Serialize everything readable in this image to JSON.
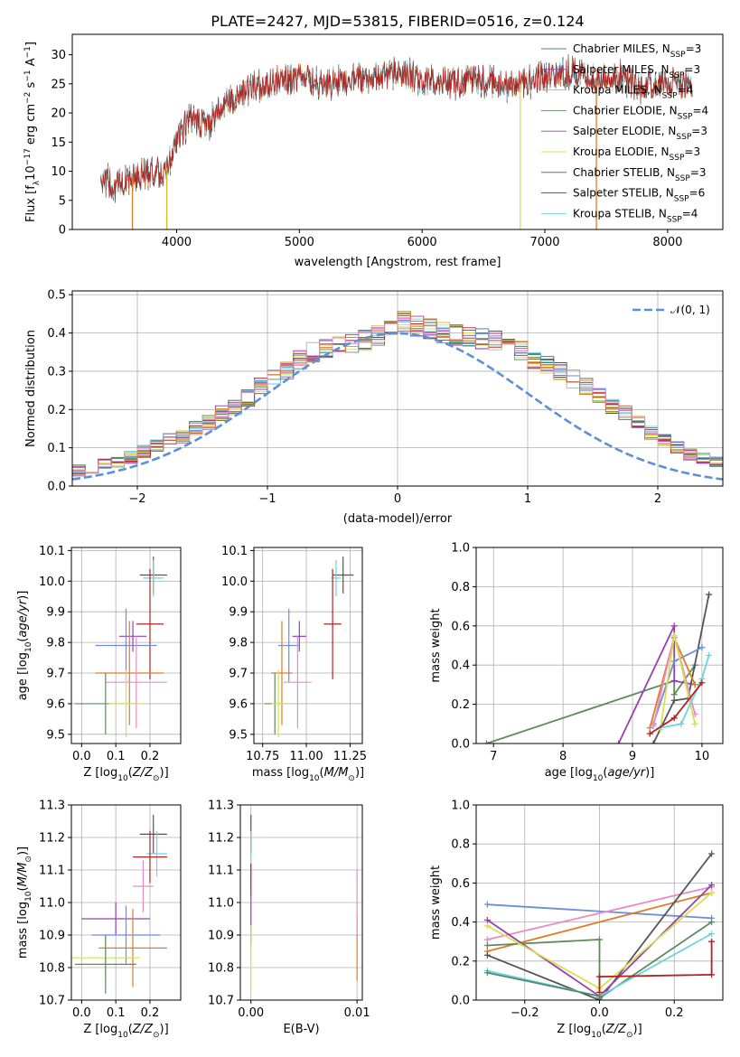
{
  "figure_title": "PLATE=2427, MJD=53815, FIBERID=0516, z=0.124",
  "palette": [
    "#4f8a6f",
    "#8b2bb3",
    "#dfb428",
    "#5f8a5f",
    "#9a3fb0",
    "#d6e04d",
    "#555555",
    "#b22222",
    "#6fd3e0",
    "#6a8edc",
    "#e07b26",
    "#e88cc4"
  ],
  "chart_data": [
    {
      "id": "spectrum",
      "type": "line",
      "title": "PLATE=2427, MJD=53815, FIBERID=0516, z=0.124",
      "xlabel": "wavelength [Angstrom, rest frame]",
      "ylabel": "Flux [f_λ10^-17 erg cm^-2 s^-1 A^-1]",
      "xlim": [
        3150,
        8450
      ],
      "ylim": [
        0,
        33.5
      ],
      "xticks": [
        4000,
        5000,
        6000,
        7000,
        8000
      ],
      "yticks": [
        0,
        5,
        10,
        15,
        20,
        25,
        30
      ],
      "grid": false,
      "legend": "top-right",
      "legend_entries": [
        {
          "model": "Chabrier MILES",
          "n": "3",
          "color": "#4f8a6f"
        },
        {
          "model": "Salpeter MILES",
          "n": "3",
          "color": "#8b2bb3"
        },
        {
          "model": "Kroupa MILES",
          "n": "4",
          "color": "#dfb428"
        },
        {
          "model": "Chabrier ELODIE",
          "n": "4",
          "color": "#5f8a5f"
        },
        {
          "model": "Salpeter ELODIE",
          "n": "3",
          "color": "#9a3fb0"
        },
        {
          "model": "Kroupa ELODIE",
          "n": "3",
          "color": "#d6e04d"
        },
        {
          "model": "Chabrier STELIB",
          "n": "3",
          "color": "#555555"
        },
        {
          "model": "Salpeter STELIB",
          "n": "6",
          "color": "#b22222"
        },
        {
          "model": "Kroupa STELIB",
          "n": "4",
          "color": "#6fd3e0"
        }
      ],
      "envelope": {
        "x": [
          3380,
          3500,
          3650,
          3800,
          3900,
          4000,
          4100,
          4250,
          4400,
          4600,
          4800,
          5000,
          5200,
          5400,
          5600,
          5800,
          6000,
          6200,
          6400,
          6600,
          6800,
          7000,
          7200,
          7400,
          7600,
          7800,
          8000,
          8200
        ],
        "y": [
          9,
          7.5,
          9,
          10,
          9.5,
          15,
          19,
          18,
          22,
          24,
          25.5,
          26,
          25,
          26,
          26,
          27,
          25.5,
          25,
          26,
          25,
          25,
          26,
          27,
          26,
          26,
          24.5,
          25.5,
          24.5
        ]
      },
      "drop_lines": [
        {
          "x": 3640,
          "color": "#e07b26"
        },
        {
          "x": 3920,
          "color": "#dfb428"
        },
        {
          "x": 6800,
          "color": "#d6e04d"
        },
        {
          "x": 7420,
          "color": "#e07b26"
        }
      ]
    },
    {
      "id": "residuals",
      "type": "histogram",
      "xlabel": "(data-model)/error",
      "ylabel": "Normed distribution",
      "xlim": [
        -2.5,
        2.5
      ],
      "ylim": [
        0,
        0.51
      ],
      "xticks": [
        -2,
        -1,
        0,
        1,
        2
      ],
      "yticks": [
        0.0,
        0.1,
        0.2,
        0.3,
        0.4,
        0.5
      ],
      "grid": true,
      "legend": "top-right",
      "reference": {
        "label": "N(0,1)",
        "color": "#5b8fd9"
      },
      "bin_width": 0.1,
      "profile": [
        0.02,
        0.022,
        0.025,
        0.03,
        0.035,
        0.04,
        0.045,
        0.055,
        0.065,
        0.075,
        0.09,
        0.105,
        0.12,
        0.13,
        0.15,
        0.165,
        0.19,
        0.205,
        0.23,
        0.26,
        0.285,
        0.3,
        0.33,
        0.35,
        0.36,
        0.37,
        0.375,
        0.38,
        0.395,
        0.41,
        0.43,
        0.42,
        0.41,
        0.4,
        0.395,
        0.39,
        0.385,
        0.38,
        0.365,
        0.355,
        0.33,
        0.315,
        0.3,
        0.28,
        0.26,
        0.235,
        0.21,
        0.19,
        0.165,
        0.14,
        0.12,
        0.1,
        0.085,
        0.07,
        0.06,
        0.05,
        0.042,
        0.035,
        0.03,
        0.025
      ]
    },
    {
      "id": "age_vs_Z",
      "type": "scatter",
      "xlabel": "Z [log10(Z/Z⊙)]",
      "ylabel": "age  [log10(age/yr)]",
      "xlim": [
        -0.03,
        0.29
      ],
      "ylim": [
        9.47,
        10.11
      ],
      "xticks": [
        0.0,
        0.1,
        0.2
      ],
      "xtick_labels": [
        "0.0",
        "0.1",
        "0.2"
      ],
      "yticks": [
        9.5,
        9.6,
        9.7,
        9.8,
        9.9,
        10.0,
        10.1
      ],
      "grid": true,
      "points": [
        {
          "x": 0.21,
          "y": 10.02,
          "xerr": 0.04,
          "yerr": 0.06,
          "color": "#555555"
        },
        {
          "x": 0.21,
          "y": 10.01,
          "xerr": 0.03,
          "yerr": 0.06,
          "color": "#6fd3e0"
        },
        {
          "x": 0.2,
          "y": 9.86,
          "xerr": 0.04,
          "yerr": 0.18,
          "color": "#b22222"
        },
        {
          "x": 0.15,
          "y": 9.82,
          "xerr": 0.04,
          "yerr": 0.05,
          "color": "#9a3fb0"
        },
        {
          "x": 0.13,
          "y": 9.79,
          "xerr": 0.09,
          "yerr": 0.12,
          "color": "#6a8edc"
        },
        {
          "x": 0.14,
          "y": 9.7,
          "xerr": 0.1,
          "yerr": 0.17,
          "color": "#e07b26"
        },
        {
          "x": 0.16,
          "y": 9.67,
          "xerr": 0.09,
          "yerr": 0.15,
          "color": "#e88cc4"
        },
        {
          "x": 0.07,
          "y": 9.6,
          "xerr": 0.09,
          "yerr": 0.1,
          "color": "#5f8a5f"
        },
        {
          "x": 0.13,
          "y": 9.6,
          "xerr": 0.05,
          "yerr": 0.11,
          "color": "#d6e04d"
        }
      ]
    },
    {
      "id": "age_vs_mass",
      "type": "scatter",
      "xlabel": "mass [log10(M/M⊙)]",
      "ylabel": "",
      "xlim": [
        10.7,
        11.32
      ],
      "ylim": [
        9.47,
        10.11
      ],
      "xticks": [
        10.75,
        11.0,
        11.25
      ],
      "xtick_labels": [
        "10.75",
        "11.00",
        "11.25"
      ],
      "yticks": [
        9.5,
        9.6,
        9.7,
        9.8,
        9.9,
        10.0,
        10.1
      ],
      "grid": true,
      "points": [
        {
          "x": 11.21,
          "y": 10.02,
          "xerr": 0.06,
          "yerr": 0.06,
          "color": "#555555"
        },
        {
          "x": 11.17,
          "y": 10.01,
          "xerr": 0.03,
          "yerr": 0.06,
          "color": "#6fd3e0"
        },
        {
          "x": 11.15,
          "y": 9.86,
          "xerr": 0.05,
          "yerr": 0.18,
          "color": "#b22222"
        },
        {
          "x": 10.96,
          "y": 9.82,
          "xerr": 0.04,
          "yerr": 0.05,
          "color": "#9a3fb0"
        },
        {
          "x": 10.9,
          "y": 9.79,
          "xerr": 0.06,
          "yerr": 0.12,
          "color": "#6a8edc"
        },
        {
          "x": 10.86,
          "y": 9.7,
          "xerr": 0.06,
          "yerr": 0.17,
          "color": "#e07b26"
        },
        {
          "x": 10.95,
          "y": 9.67,
          "xerr": 0.08,
          "yerr": 0.15,
          "color": "#e88cc4"
        },
        {
          "x": 10.82,
          "y": 9.6,
          "xerr": 0.06,
          "yerr": 0.1,
          "color": "#5f8a5f"
        },
        {
          "x": 10.84,
          "y": 9.6,
          "xerr": 0.04,
          "yerr": 0.11,
          "color": "#d6e04d"
        }
      ]
    },
    {
      "id": "massweight_vs_age",
      "type": "line",
      "xlabel": "age  [log10(age/yr)]",
      "ylabel": "mass weight",
      "xlim": [
        6.75,
        10.3
      ],
      "ylim": [
        0,
        1.0
      ],
      "xticks": [
        7,
        8,
        9,
        10
      ],
      "xtick_labels": [
        "7",
        "8",
        "9",
        "10"
      ],
      "yticks": [
        0.0,
        0.2,
        0.4,
        0.6,
        0.8,
        1.0
      ],
      "grid": true,
      "series": [
        {
          "color": "#5f8a5f",
          "x": [
            6.9,
            9.6,
            9.6,
            9.9
          ],
          "y": [
            0.0,
            0.32,
            0.25,
            0.4
          ]
        },
        {
          "color": "#9a3fb0",
          "x": [
            8.8,
            9.6,
            9.6,
            9.9
          ],
          "y": [
            0.0,
            0.6,
            0.32,
            0.3
          ]
        },
        {
          "color": "#555555",
          "x": [
            9.3,
            9.6,
            9.8,
            10.1
          ],
          "y": [
            0.0,
            0.22,
            0.23,
            0.76
          ]
        },
        {
          "color": "#6a8edc",
          "x": [
            9.3,
            9.6,
            10.0
          ],
          "y": [
            0.1,
            0.42,
            0.49
          ]
        },
        {
          "color": "#e07b26",
          "x": [
            9.25,
            9.6,
            9.9
          ],
          "y": [
            0.08,
            0.54,
            0.3
          ]
        },
        {
          "color": "#e88cc4",
          "x": [
            9.3,
            9.6,
            9.9
          ],
          "y": [
            0.09,
            0.55,
            0.15
          ]
        },
        {
          "color": "#d6e04d",
          "x": [
            9.4,
            9.6,
            9.9
          ],
          "y": [
            0.07,
            0.55,
            0.1
          ]
        },
        {
          "color": "#6fd3e0",
          "x": [
            9.4,
            9.7,
            10.0,
            10.1
          ],
          "y": [
            0.08,
            0.1,
            0.33,
            0.45
          ]
        },
        {
          "color": "#b22222",
          "x": [
            9.25,
            9.6,
            10.0
          ],
          "y": [
            0.05,
            0.13,
            0.31
          ]
        }
      ]
    },
    {
      "id": "mass_vs_Z",
      "type": "scatter",
      "xlabel": "Z [log10(Z/Z⊙)]",
      "ylabel": "mass [log10(M/M⊙)]",
      "xlim": [
        -0.03,
        0.29
      ],
      "ylim": [
        10.7,
        11.3
      ],
      "xticks": [
        0.0,
        0.1,
        0.2
      ],
      "xtick_labels": [
        "0.0",
        "0.1",
        "0.2"
      ],
      "yticks": [
        10.7,
        10.8,
        10.9,
        11.0,
        11.1,
        11.2,
        11.3
      ],
      "grid": true,
      "points": [
        {
          "x": 0.21,
          "y": 11.21,
          "xerr": 0.04,
          "yerr": 0.06,
          "color": "#555555"
        },
        {
          "x": 0.22,
          "y": 11.15,
          "xerr": 0.03,
          "yerr": 0.07,
          "color": "#6fd3e0"
        },
        {
          "x": 0.2,
          "y": 11.14,
          "xerr": 0.05,
          "yerr": 0.08,
          "color": "#b22222"
        },
        {
          "x": 0.18,
          "y": 11.05,
          "xerr": 0.03,
          "yerr": 0.08,
          "color": "#e88cc4"
        },
        {
          "x": 0.1,
          "y": 10.95,
          "xerr": 0.1,
          "yerr": 0.05,
          "color": "#9a3fb0"
        },
        {
          "x": 0.13,
          "y": 10.9,
          "xerr": 0.1,
          "yerr": 0.09,
          "color": "#6a8edc"
        },
        {
          "x": 0.15,
          "y": 10.86,
          "xerr": 0.1,
          "yerr": 0.12,
          "color": "#e07b26"
        },
        {
          "x": 0.07,
          "y": 10.83,
          "xerr": 0.1,
          "yerr": 0.07,
          "color": "#d6e04d"
        },
        {
          "x": 0.07,
          "y": 10.81,
          "xerr": 0.09,
          "yerr": 0.09,
          "color": "#5f8a5f"
        }
      ]
    },
    {
      "id": "mass_vs_ebv",
      "type": "scatter",
      "xlabel": "E(B-V)",
      "ylabel": "",
      "xlim": [
        -0.001,
        0.0105
      ],
      "ylim": [
        10.7,
        11.3
      ],
      "xticks": [
        0.0,
        0.01
      ],
      "xtick_labels": [
        "0.00",
        "0.01"
      ],
      "yticks": [
        10.7,
        10.8,
        10.9,
        11.0,
        11.1,
        11.2,
        11.3
      ],
      "grid": true,
      "points": [
        {
          "x": 0.0,
          "y": 11.21,
          "yerr": 0.06,
          "color": "#555555"
        },
        {
          "x": 0.0,
          "y": 11.15,
          "yerr": 0.07,
          "color": "#6fd3e0"
        },
        {
          "x": 0.0,
          "y": 11.07,
          "yerr": 0.05,
          "color": "#b22222"
        },
        {
          "x": 0.0,
          "y": 10.95,
          "yerr": 0.08,
          "color": "#9a3fb0"
        },
        {
          "x": 0.0,
          "y": 10.83,
          "yerr": 0.1,
          "color": "#d6e04d"
        },
        {
          "x": 0.01,
          "y": 10.86,
          "yerr": 0.1,
          "color": "#e07b26"
        },
        {
          "x": 0.01,
          "y": 11.0,
          "yerr": 0.1,
          "color": "#e88cc4"
        }
      ]
    },
    {
      "id": "massweight_vs_Z",
      "type": "line",
      "xlabel": "Z [log10(Z/Z⊙)]",
      "ylabel": "mass weight",
      "xlim": [
        -0.33,
        0.33
      ],
      "ylim": [
        0,
        1.0
      ],
      "xticks": [
        -0.2,
        0.0,
        0.2
      ],
      "xtick_labels": [
        "−0.2",
        "0.0",
        "0.2"
      ],
      "yticks": [
        0.0,
        0.2,
        0.4,
        0.6,
        0.8,
        1.0
      ],
      "grid": true,
      "series": [
        {
          "color": "#6a8edc",
          "x": [
            -0.3,
            0.3
          ],
          "y": [
            0.49,
            0.42
          ]
        },
        {
          "color": "#e88cc4",
          "x": [
            -0.3,
            0.3
          ],
          "y": [
            0.31,
            0.58
          ]
        },
        {
          "color": "#e07b26",
          "x": [
            -0.3,
            0.3
          ],
          "y": [
            0.25,
            0.55
          ]
        },
        {
          "color": "#555555",
          "x": [
            -0.3,
            0.0,
            0.3
          ],
          "y": [
            0.23,
            0.0,
            0.75
          ]
        },
        {
          "color": "#9a3fb0",
          "x": [
            -0.3,
            0.0,
            0.3
          ],
          "y": [
            0.41,
            0.02,
            0.59
          ]
        },
        {
          "color": "#5f8a5f",
          "x": [
            -0.3,
            0.0,
            0.0,
            0.3
          ],
          "y": [
            0.28,
            0.31,
            0.01,
            0.4
          ]
        },
        {
          "color": "#d6e04d",
          "x": [
            -0.3,
            0.0,
            0.3
          ],
          "y": [
            0.38,
            0.06,
            0.55
          ]
        },
        {
          "color": "#6fd3e0",
          "x": [
            -0.3,
            0.0,
            0.3
          ],
          "y": [
            0.15,
            0.02,
            0.34
          ]
        },
        {
          "color": "#b22222",
          "x": [
            0.0,
            0.0,
            0.3,
            0.3
          ],
          "y": [
            0.04,
            0.12,
            0.13,
            0.3
          ]
        },
        {
          "color": "#4f8a6f",
          "x": [
            -0.3,
            0.0
          ],
          "y": [
            0.14,
            0.02
          ]
        }
      ]
    }
  ]
}
